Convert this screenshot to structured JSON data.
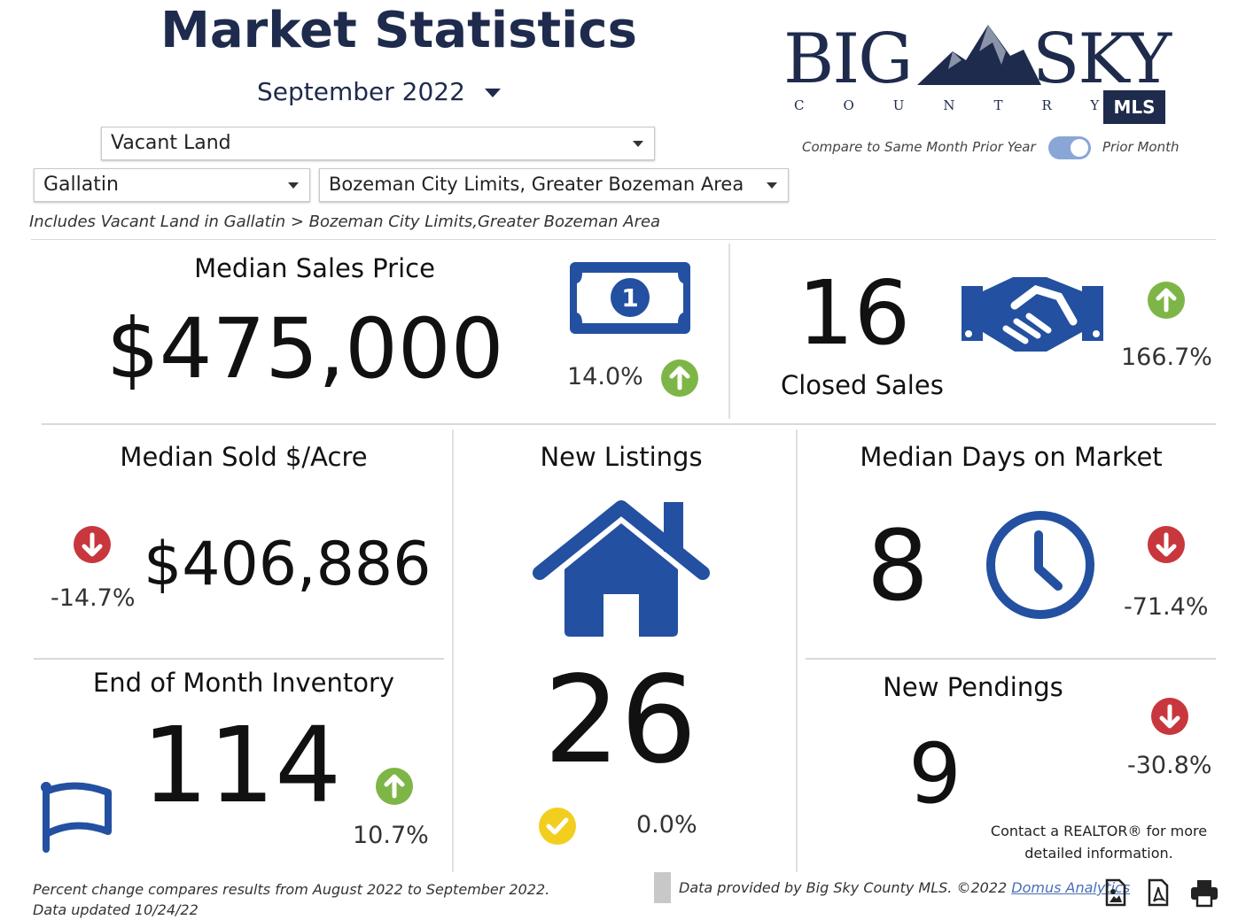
{
  "header": {
    "title": "Market Statistics",
    "period": "September 2022",
    "logo": {
      "big": "BIG",
      "sky": "SKY",
      "country": "COUNTRY",
      "mls": "MLS"
    },
    "compare_left": "Compare to Same Month Prior Year",
    "compare_right": "Prior Month"
  },
  "filters": {
    "property_type": "Vacant Land",
    "county": "Gallatin",
    "area": "Bozeman City Limits, Greater Bozeman Area",
    "description": "Includes Vacant Land in Gallatin > Bozeman City Limits,Greater Bozeman Area"
  },
  "metrics": [
    {
      "label": "Median Sales Price",
      "value": "$475,000",
      "change": "14.0%",
      "trend": "up"
    },
    {
      "label": "Closed Sales",
      "value": "16",
      "change": "166.7%",
      "trend": "up"
    },
    {
      "label": "Median Sold $/Acre",
      "value": "$406,886",
      "change": "-14.7%",
      "trend": "down"
    },
    {
      "label": "New Listings",
      "value": "26",
      "change": "0.0%",
      "trend": "flat"
    },
    {
      "label": "Median Days on Market",
      "value": "8",
      "change": "-71.4%",
      "trend": "down"
    },
    {
      "label": "End of Month Inventory",
      "value": "114",
      "change": "10.7%",
      "trend": "up"
    },
    {
      "label": "New Pendings",
      "value": "9",
      "change": "-30.8%",
      "trend": "down"
    }
  ],
  "contact": "Contact a REALTOR® for more detailed information.",
  "footer": {
    "note": "Percent change compares results from August 2022 to September 2022.  Data updated 10/24/22",
    "credit": "Data provided by Big Sky County MLS. ©2022",
    "link": "Domus Analytics"
  }
}
